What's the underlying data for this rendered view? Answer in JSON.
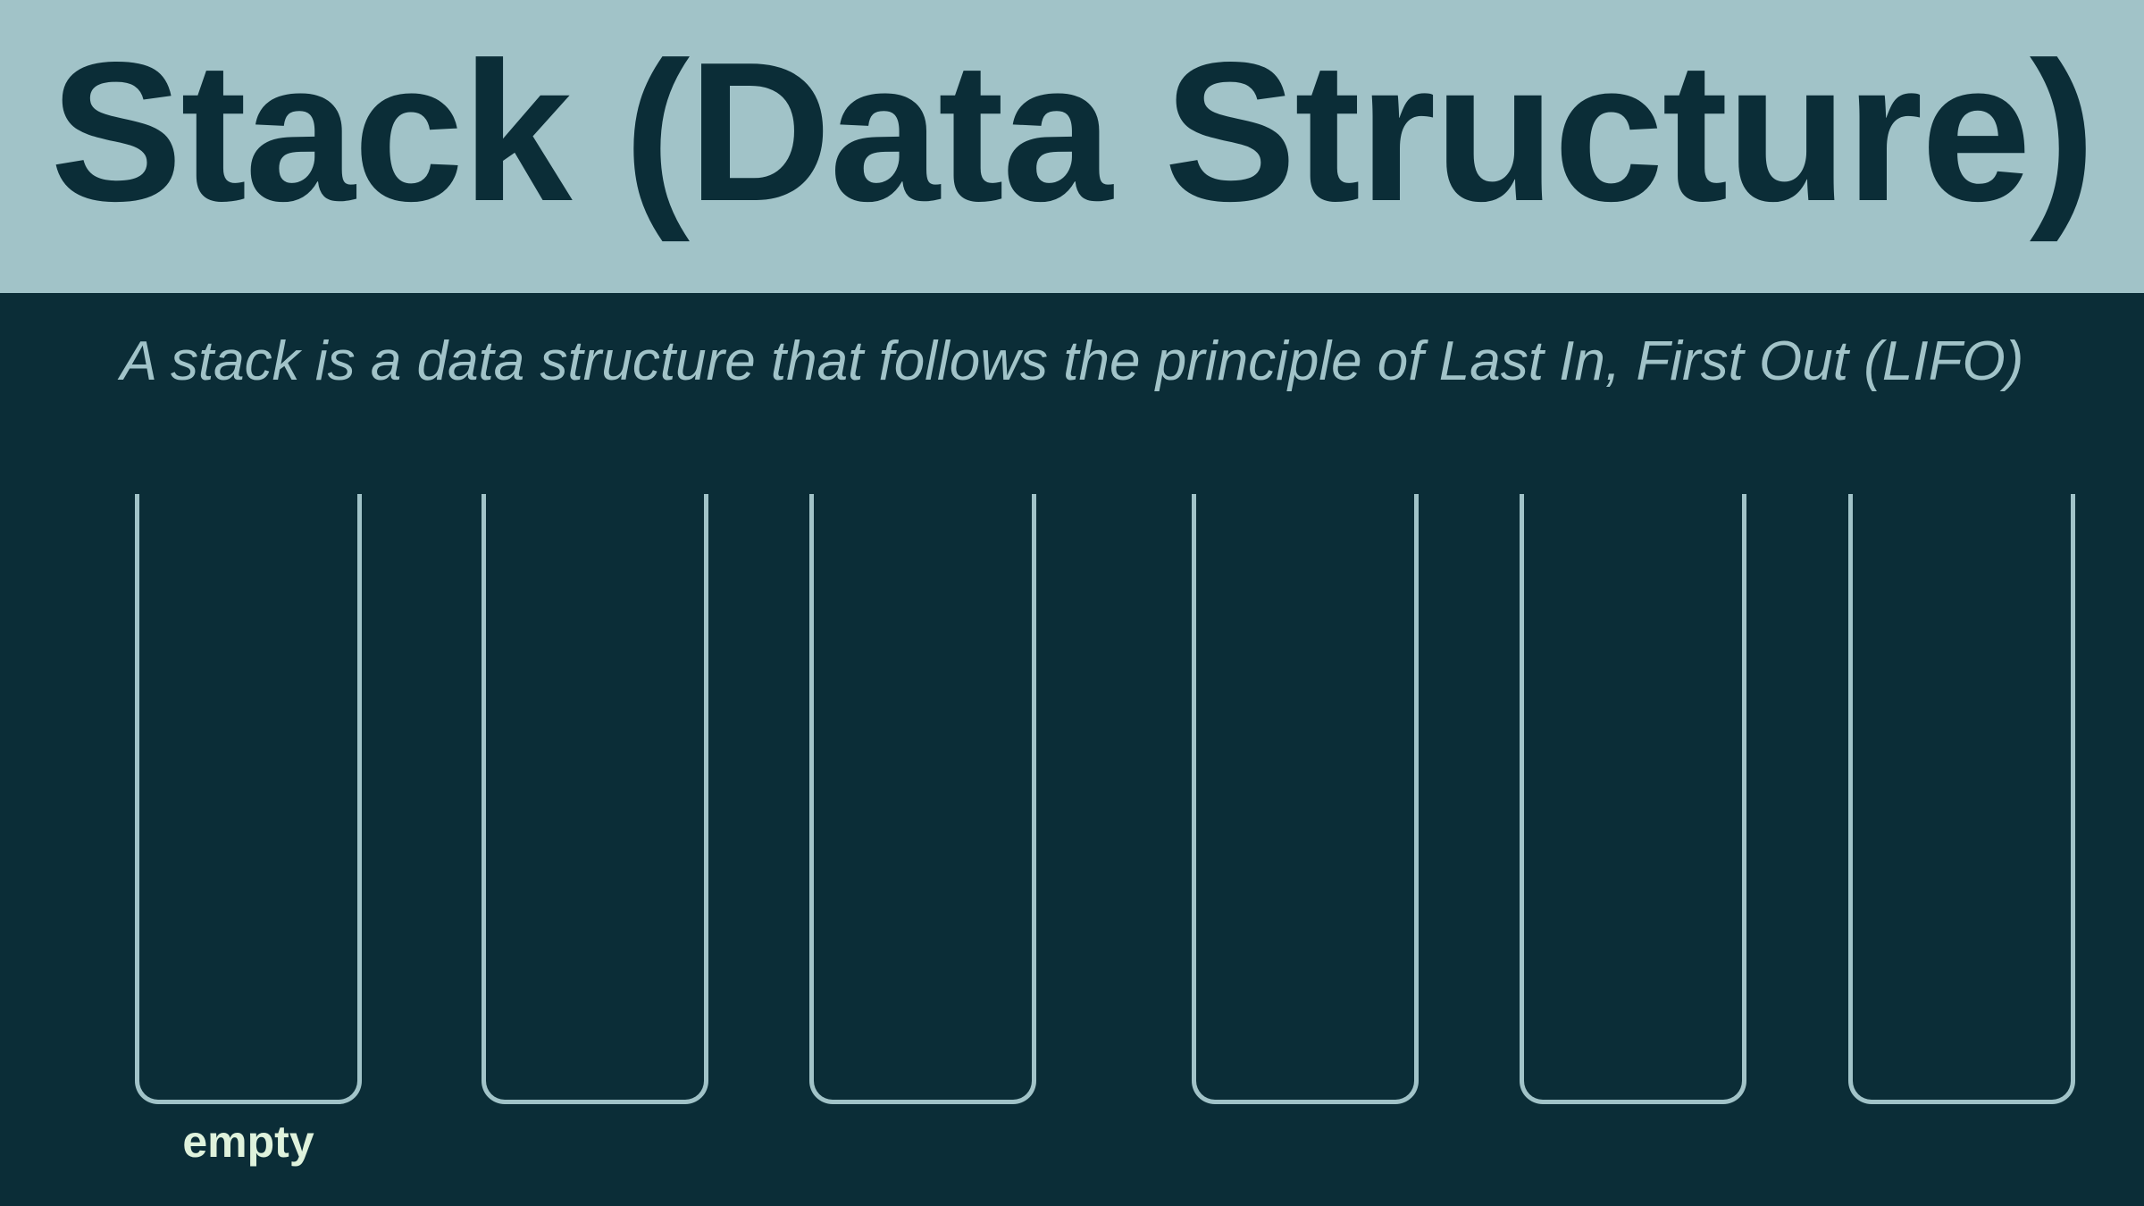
{
  "header": {
    "title": "Stack (Data Structure)"
  },
  "subtitle": "A stack is a data structure that follows the principle of Last In, First Out (LIFO)",
  "stacks": [
    {
      "label": "empty"
    },
    {
      "label": ""
    },
    {
      "label": ""
    },
    {
      "label": ""
    },
    {
      "label": ""
    },
    {
      "label": ""
    }
  ],
  "colors": {
    "background": "#0b2d37",
    "header_band": "#a1c3c8",
    "outline": "#a1c3c8",
    "label": "#dff2dc"
  }
}
